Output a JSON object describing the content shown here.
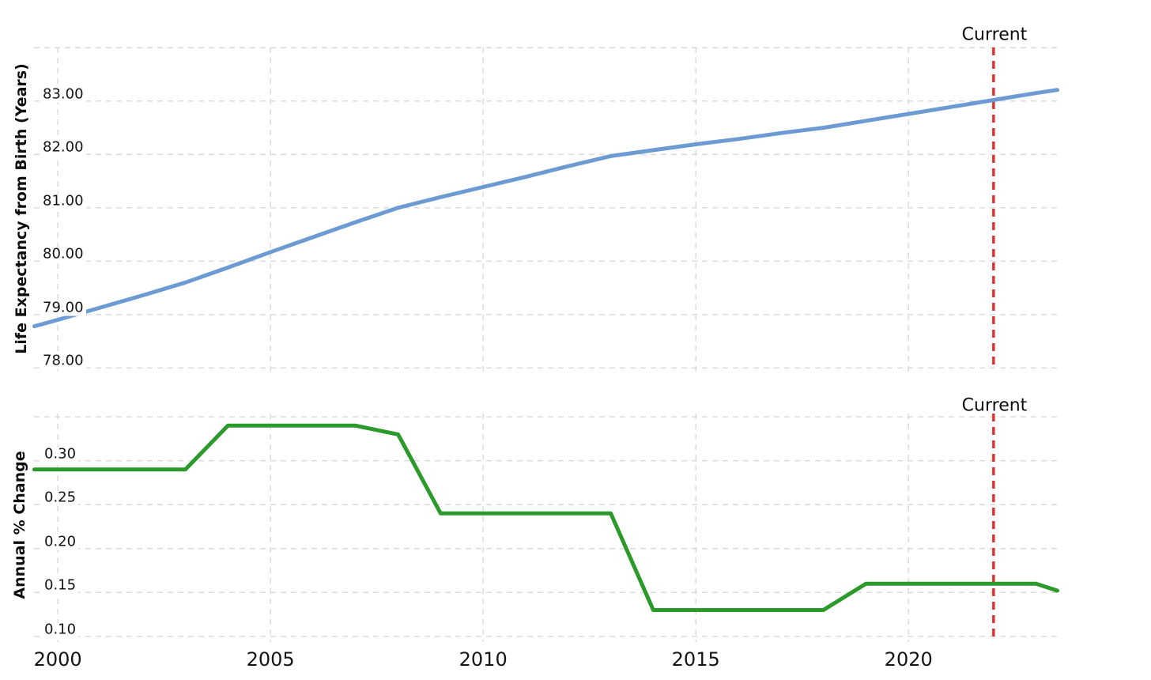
{
  "annotation": {
    "label": "Current",
    "year": 2022,
    "color": "#e02d2d"
  },
  "colors": {
    "grid": "#d9d9d9",
    "text": "#111111",
    "background": "#ffffff"
  },
  "x_axis": {
    "range": [
      1999.44,
      2023.62
    ],
    "ticks": [
      2000,
      2005,
      2010,
      2015,
      2020
    ],
    "tick_labels": [
      "2000",
      "2005",
      "2010",
      "2015",
      "2020"
    ]
  },
  "chart_data": [
    {
      "type": "line",
      "panel": "top",
      "ylabel": "Life Expectancy from Birth (Years)",
      "ylim": [
        77.93,
        84.05
      ],
      "grid": true,
      "grid_values": [
        78,
        79,
        80,
        81,
        82,
        83,
        84
      ],
      "tick_values": [
        78,
        79,
        80,
        81,
        82,
        83
      ],
      "tick_labels": [
        "78.00",
        "79.00",
        "80.00",
        "81.00",
        "82.00",
        "83.00"
      ],
      "legend_position": "none",
      "series": [
        {
          "name": "Life Expectancy from Birth (Years)",
          "color": "#6b9bd2",
          "x": [
            1999.45,
            2000,
            2001,
            2002,
            2003,
            2004,
            2005,
            2006,
            2007,
            2008,
            2009,
            2010,
            2011,
            2012,
            2013,
            2014,
            2015,
            2016,
            2017,
            2018,
            2019,
            2020,
            2021,
            2022,
            2023,
            2023.5
          ],
          "y": [
            78.78,
            78.9,
            79.13,
            79.36,
            79.6,
            79.88,
            80.17,
            80.45,
            80.73,
            81.0,
            81.2,
            81.39,
            81.58,
            81.78,
            81.97,
            82.08,
            82.19,
            82.29,
            82.4,
            82.5,
            82.63,
            82.76,
            82.89,
            83.02,
            83.15,
            83.21
          ]
        }
      ]
    },
    {
      "type": "line",
      "panel": "bottom",
      "ylabel": "Annual % Change",
      "ylim": [
        0.0935,
        0.3565
      ],
      "grid": true,
      "grid_values": [
        0.1,
        0.15,
        0.2,
        0.25,
        0.3,
        0.35
      ],
      "tick_values": [
        0.1,
        0.15,
        0.2,
        0.25,
        0.3
      ],
      "tick_labels": [
        "0.10",
        "0.15",
        "0.20",
        "0.25",
        "0.30"
      ],
      "legend_position": "none",
      "series": [
        {
          "name": "Annual % Change",
          "color": "#2b9a2b",
          "x": [
            1999.45,
            2000,
            2001,
            2002,
            2003,
            2004,
            2005,
            2006,
            2007,
            2008,
            2009,
            2010,
            2011,
            2012,
            2013,
            2014,
            2015,
            2016,
            2017,
            2018,
            2019,
            2020,
            2021,
            2022,
            2023,
            2023.5
          ],
          "y": [
            0.29,
            0.29,
            0.29,
            0.29,
            0.29,
            0.34,
            0.34,
            0.34,
            0.34,
            0.33,
            0.24,
            0.24,
            0.24,
            0.24,
            0.24,
            0.13,
            0.13,
            0.13,
            0.13,
            0.13,
            0.16,
            0.16,
            0.16,
            0.16,
            0.16,
            0.152
          ]
        }
      ]
    }
  ]
}
